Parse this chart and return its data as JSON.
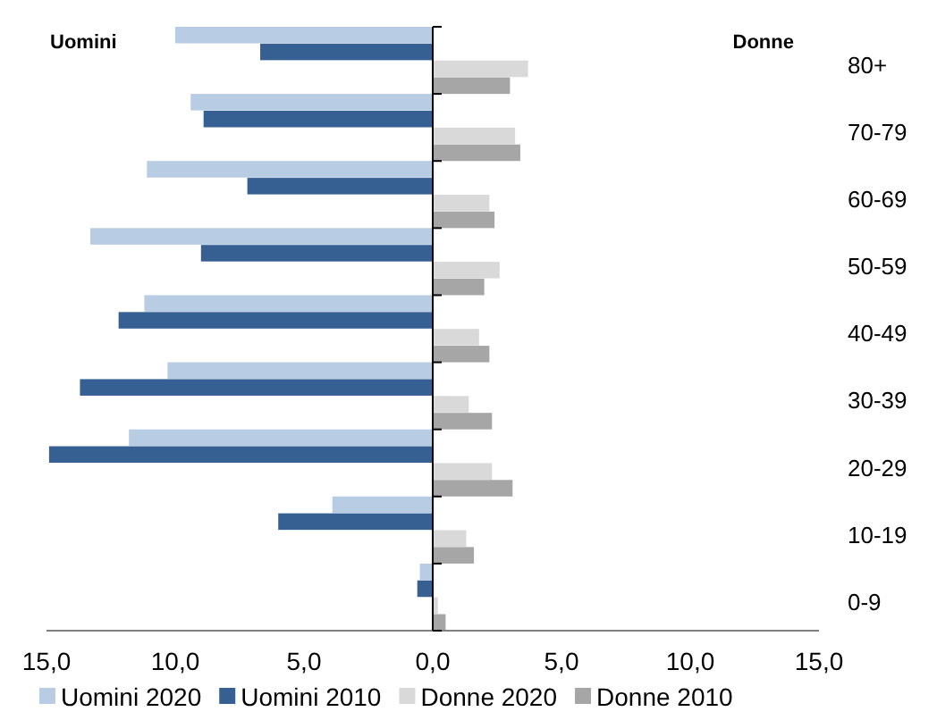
{
  "chart_data": {
    "type": "bar",
    "orientation": "horizontal",
    "categories": [
      "80+",
      "70-79",
      "60-69",
      "50-59",
      "40-49",
      "30-39",
      "20-29",
      "10-19",
      "0-9"
    ],
    "series": [
      {
        "name": "Uomini 2020",
        "color": "#b8cce4",
        "values": [
          -10.0,
          -9.4,
          -11.1,
          -13.3,
          -11.2,
          -10.3,
          -11.8,
          -3.9,
          -0.5
        ]
      },
      {
        "name": "Uomini 2010",
        "color": "#376092",
        "values": [
          -6.7,
          -8.9,
          -7.2,
          -9.0,
          -12.2,
          -13.7,
          -14.9,
          -6.0,
          -0.6
        ]
      },
      {
        "name": "Donne 2020",
        "color": "#d9d9d9",
        "values": [
          3.7,
          3.2,
          2.2,
          2.6,
          1.8,
          1.4,
          2.3,
          1.3,
          0.2
        ]
      },
      {
        "name": "Donne 2010",
        "color": "#a6a6a6",
        "values": [
          3.0,
          3.4,
          2.4,
          2.0,
          2.2,
          2.3,
          3.1,
          1.6,
          0.5
        ]
      }
    ],
    "xlim": [
      -15,
      15
    ],
    "xticks": [
      {
        "value": -15,
        "label": "15,0"
      },
      {
        "value": -10,
        "label": "10,0"
      },
      {
        "value": -5,
        "label": "5,0"
      },
      {
        "value": 0,
        "label": "0,0"
      },
      {
        "value": 5,
        "label": "5,0"
      },
      {
        "value": 10,
        "label": "10,0"
      },
      {
        "value": 15,
        "label": "15,0"
      }
    ],
    "annotations": [
      "Uomini",
      "Donne"
    ],
    "legend": "bottom"
  }
}
